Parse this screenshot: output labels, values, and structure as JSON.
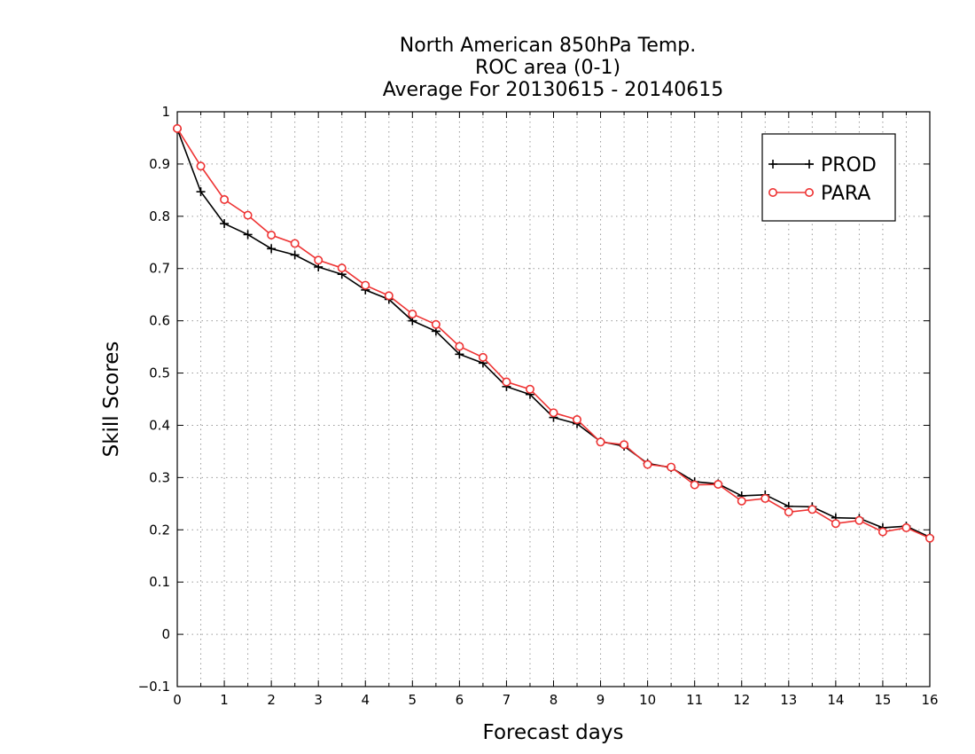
{
  "chart_data": {
    "type": "line",
    "title": [
      "North American 850hPa Temp.",
      "ROC area (0-1)",
      "Average For 20130615 - 20140615"
    ],
    "xlabel": "Forecast days",
    "ylabel": "Skill Scores",
    "xlim": [
      0,
      16
    ],
    "ylim": [
      -0.1,
      1
    ],
    "x_ticks": [
      0,
      1,
      2,
      3,
      4,
      5,
      6,
      7,
      8,
      9,
      10,
      11,
      12,
      13,
      14,
      15,
      16
    ],
    "x_tick_labels": [
      "0",
      "1",
      "2",
      "3",
      "4",
      "5",
      "6",
      "7",
      "8",
      "9",
      "10",
      "11",
      "12",
      "13",
      "14",
      "15",
      "16"
    ],
    "y_ticks": [
      -0.1,
      0,
      0.1,
      0.2,
      0.3,
      0.4,
      0.5,
      0.6,
      0.7,
      0.8,
      0.9,
      1
    ],
    "y_tick_labels": [
      "−0.1",
      "0",
      "0.1",
      "0.2",
      "0.3",
      "0.4",
      "0.5",
      "0.6",
      "0.7",
      "0.8",
      "0.9",
      "1"
    ],
    "grid": true,
    "legend_position": "top-right",
    "x": [
      0,
      0.5,
      1,
      1.5,
      2,
      2.5,
      3,
      3.5,
      4,
      4.5,
      5,
      5.5,
      6,
      6.5,
      7,
      7.5,
      8,
      8.5,
      9,
      9.5,
      10,
      10.5,
      11,
      11.5,
      12,
      12.5,
      13,
      13.5,
      14,
      14.5,
      15,
      15.5,
      16
    ],
    "series": [
      {
        "name": "PROD",
        "color": "#000000",
        "marker": "plus",
        "values": [
          0.967,
          0.847,
          0.786,
          0.765,
          0.738,
          0.726,
          0.703,
          0.689,
          0.659,
          0.641,
          0.6,
          0.58,
          0.536,
          0.519,
          0.474,
          0.459,
          0.415,
          0.403,
          0.369,
          0.36,
          0.327,
          0.319,
          0.292,
          0.288,
          0.265,
          0.267,
          0.245,
          0.244,
          0.223,
          0.222,
          0.204,
          0.207,
          0.186
        ]
      },
      {
        "name": "PARA",
        "color": "#ee3333",
        "marker": "circle",
        "values": [
          0.968,
          0.896,
          0.832,
          0.802,
          0.764,
          0.748,
          0.716,
          0.701,
          0.668,
          0.648,
          0.613,
          0.593,
          0.551,
          0.53,
          0.483,
          0.469,
          0.424,
          0.411,
          0.368,
          0.363,
          0.325,
          0.32,
          0.286,
          0.287,
          0.255,
          0.26,
          0.234,
          0.239,
          0.212,
          0.218,
          0.196,
          0.204,
          0.184
        ]
      }
    ]
  }
}
